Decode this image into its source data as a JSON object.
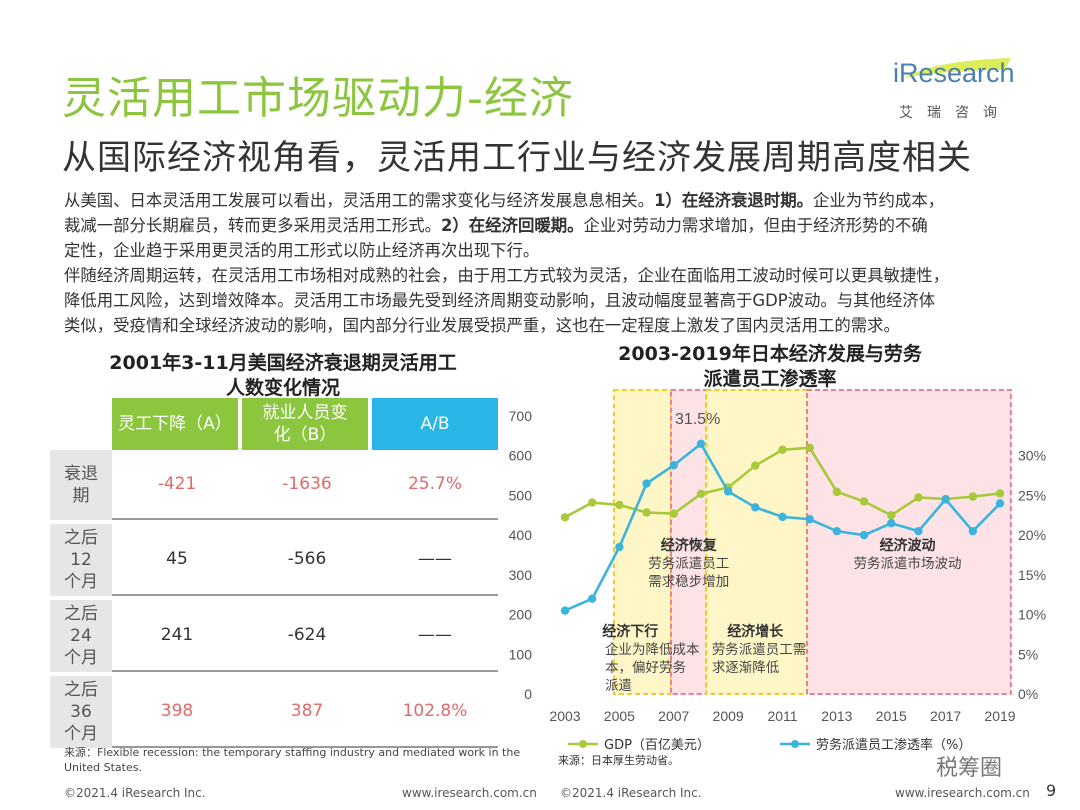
{
  "page": {
    "title": "灵活用工市场驱动力-经济",
    "subtitle": "从国际经济视角看，灵活用工行业与经济发展周期高度相关",
    "logo": {
      "brand": "iResearch",
      "sub": "艾瑞咨询"
    },
    "body": {
      "p1_a": "从美国、日本灵活用工发展可以看出，灵活用工的需求变化与经济发展息息相关。",
      "p1_b": "1）在经济衰退时期。",
      "p1_c": "企业为节约成本，",
      "p2_a": "裁减一部分长期雇员，转而更多采用灵活用工形式。",
      "p2_b": "2）在经济回暖期。",
      "p2_c": "企业对劳动力需求增加，但由于经济形势的不确",
      "p3": "定性，企业趋于采用更灵活的用工形式以防止经济再次出现下行。",
      "p4": "伴随经济周期运转，在灵活用工市场相对成熟的社会，由于用工方式较为灵活，企业在面临用工波动时候可以更具敏捷性，",
      "p5": "降低用工风险，达到增效降本。灵活用工市场最先受到经济周期变动影响，且波动幅度显著高于GDP波动。与其他经济体",
      "p6": "类似，受疫情和全球经济波动的影响，国内部分行业发展受损严重，这也在一定程度上激发了国内灵活用工的需求。"
    },
    "footer_left": "©2021.4 iResearch Inc.",
    "footer_mid_url": "www.iresearch.com.cn",
    "footer_mid": "©2021.4 iResearch Inc.",
    "footer_right_url": "www.iresearch.com.cn",
    "page_number": "9",
    "watermark": "税筹圈"
  },
  "table": {
    "title_line1": "2001年3-11月美国经济衰退期灵活用工",
    "title_line2": "人数变化情况",
    "headers": [
      "灵工下降（A）",
      "就业人员变化（B）",
      "A/B"
    ],
    "header_b_line1": "就业人员变",
    "header_b_line2": "化（B）",
    "rows": [
      {
        "label_l1": "衰退",
        "label_l2": "期",
        "label_l3": "",
        "a": "-421",
        "b": "-1636",
        "ab": "25.7%"
      },
      {
        "label_l1": "之后",
        "label_l2": "12",
        "label_l3": "个月",
        "a": "45",
        "b": "-566",
        "ab": "——"
      },
      {
        "label_l1": "之后",
        "label_l2": "24",
        "label_l3": "个月",
        "a": "241",
        "b": "-624",
        "ab": "——"
      },
      {
        "label_l1": "之后",
        "label_l2": "36",
        "label_l3": "个月",
        "a": "398",
        "b": "387",
        "ab": "102.8%"
      }
    ],
    "source": "来源：Flexible recession: the temporary staffing industry and mediated work in the United States."
  },
  "chart_data": {
    "type": "line",
    "title_line1": "2003-2019年日本经济发展与劳务",
    "title_line2": "派遣员工渗透率",
    "x": [
      2003,
      2004,
      2005,
      2006,
      2007,
      2008,
      2009,
      2010,
      2011,
      2012,
      2013,
      2014,
      2015,
      2016,
      2017,
      2018,
      2019
    ],
    "x_ticks": [
      "2003",
      "2005",
      "2007",
      "2009",
      "2011",
      "2013",
      "2015",
      "2017",
      "2019"
    ],
    "y_left_ticks": [
      "0",
      "100",
      "200",
      "300",
      "400",
      "500",
      "600",
      "700"
    ],
    "y_right_ticks": [
      "0%",
      "5%",
      "10%",
      "15%",
      "20%",
      "25%",
      "30%"
    ],
    "ylim_left": [
      0,
      700
    ],
    "ylim_right": [
      0,
      35
    ],
    "series": [
      {
        "name": "GDP（百亿美元）",
        "axis": "left",
        "color": "#a8c93a",
        "values": [
          445,
          482,
          476,
          457,
          454,
          504,
          520,
          575,
          615,
          620,
          509,
          485,
          450,
          495,
          491,
          497,
          505
        ]
      },
      {
        "name": "劳务派遣员工渗透率（%）",
        "axis": "right",
        "color": "#3ab4dc",
        "values": [
          10.5,
          12.0,
          18.5,
          26.5,
          28.8,
          31.5,
          25.5,
          23.5,
          22.3,
          22.0,
          20.5,
          20.0,
          21.5,
          20.5,
          24.5,
          20.5,
          24.0
        ]
      }
    ],
    "peak_label": "31.5%",
    "periods": [
      {
        "type": "yellow",
        "start": 2004.8,
        "end": 2006.9,
        "head": "经济下行",
        "lines": [
          "企业为降低成本",
          "本，偏好劳务",
          "派遣"
        ]
      },
      {
        "type": "pink",
        "start": 2006.9,
        "end": 2008.2,
        "head": "经济恢复",
        "lines": [
          "劳务派遣员工",
          "需求稳步增加"
        ]
      },
      {
        "type": "yellow",
        "start": 2008.2,
        "end": 2011.9,
        "head": "经济增长",
        "lines": [
          "劳务派遣员工需",
          "求逐渐降低"
        ]
      },
      {
        "type": "pink",
        "start": 2011.9,
        "end": 2019.4,
        "head": "经济波动",
        "lines": [
          "劳务派遣市场波动"
        ]
      }
    ],
    "source": "来源：日本厚生劳动省。",
    "legend_position": "bottom"
  }
}
